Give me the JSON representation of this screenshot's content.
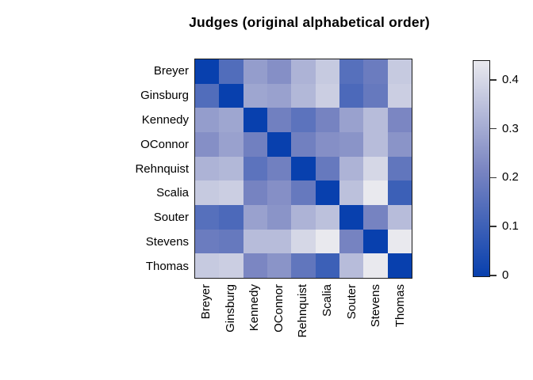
{
  "title": "Judges (original alphabetical order)",
  "chart_data": {
    "type": "heatmap",
    "title": "Judges (original alphabetical order)",
    "description": "Symmetric dissimilarity (disagreement) matrix among U.S. Supreme Court justices; diagonal = 0 (darkest blue), larger values lighter.",
    "rows": [
      "Breyer",
      "Ginsburg",
      "Kennedy",
      "OConnor",
      "Rehnquist",
      "Scalia",
      "Souter",
      "Stevens",
      "Thomas"
    ],
    "columns": [
      "Breyer",
      "Ginsburg",
      "Kennedy",
      "OConnor",
      "Rehnquist",
      "Scalia",
      "Souter",
      "Stevens",
      "Thomas"
    ],
    "values": [
      [
        0.0,
        0.14,
        0.27,
        0.24,
        0.32,
        0.37,
        0.15,
        0.19,
        0.37
      ],
      [
        0.14,
        0.0,
        0.29,
        0.28,
        0.33,
        0.38,
        0.13,
        0.18,
        0.38
      ],
      [
        0.27,
        0.29,
        0.0,
        0.2,
        0.16,
        0.21,
        0.28,
        0.34,
        0.22
      ],
      [
        0.24,
        0.28,
        0.2,
        0.0,
        0.2,
        0.24,
        0.25,
        0.34,
        0.25
      ],
      [
        0.32,
        0.33,
        0.16,
        0.2,
        0.0,
        0.18,
        0.32,
        0.4,
        0.17
      ],
      [
        0.37,
        0.38,
        0.21,
        0.24,
        0.18,
        0.0,
        0.35,
        0.44,
        0.1
      ],
      [
        0.15,
        0.13,
        0.28,
        0.25,
        0.32,
        0.35,
        0.0,
        0.21,
        0.34
      ],
      [
        0.19,
        0.18,
        0.34,
        0.34,
        0.4,
        0.44,
        0.21,
        0.0,
        0.44
      ],
      [
        0.37,
        0.38,
        0.22,
        0.25,
        0.17,
        0.1,
        0.34,
        0.44,
        0.0
      ]
    ],
    "value_range": [
      0,
      0.44
    ],
    "grid": false,
    "colormap": {
      "low": "#0840ae",
      "mid": "#7b86c2",
      "high": "#e9e9ee"
    },
    "frame_color": "#1a1a1a",
    "legend": {
      "position": "right",
      "orientation": "vertical",
      "ticks": [
        0,
        0.1,
        0.2,
        0.3,
        0.4
      ],
      "tick_labels": [
        "0",
        "0.1",
        "0.2",
        "0.3",
        "0.4"
      ]
    }
  }
}
